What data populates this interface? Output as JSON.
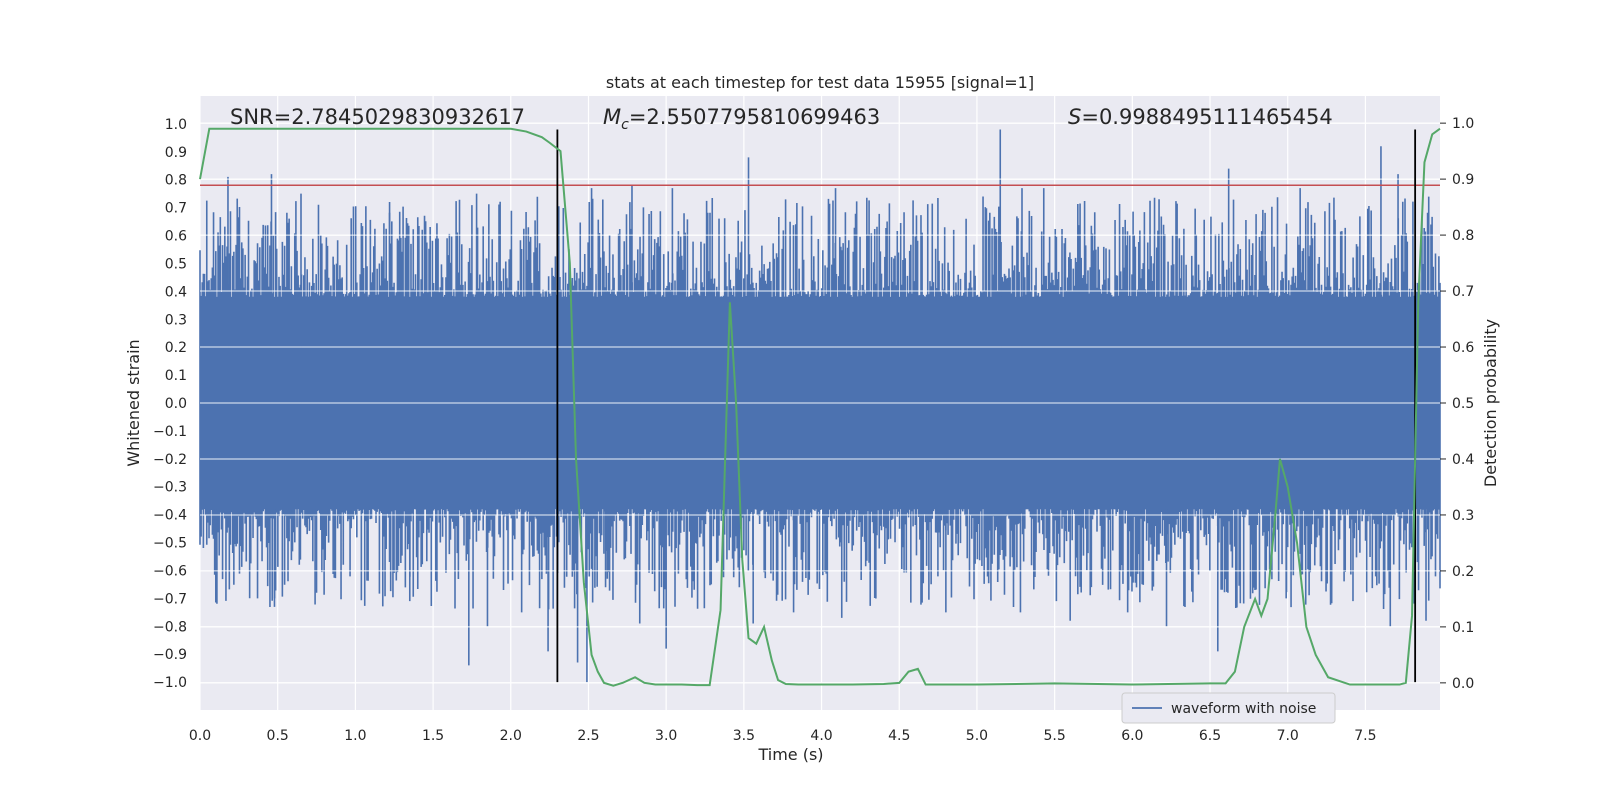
{
  "chart_data": {
    "type": "line",
    "title": "stats at each timestep for test data 15955 [signal=1]",
    "xlabel": "Time (s)",
    "ylabel": "Whitened strain",
    "y2label": "Detection probability",
    "xlim": [
      0.0,
      7.98
    ],
    "ylim": [
      -1.1,
      1.1
    ],
    "y2lim": [
      -0.0485,
      1.0485
    ],
    "xticks": [
      0.0,
      0.5,
      1.0,
      1.5,
      2.0,
      2.5,
      3.0,
      3.5,
      4.0,
      4.5,
      5.0,
      5.5,
      6.0,
      6.5,
      7.0,
      7.5
    ],
    "xtick_labels": [
      "0.0",
      "0.5",
      "1.0",
      "1.5",
      "2.0",
      "2.5",
      "3.0",
      "3.5",
      "4.0",
      "4.5",
      "5.0",
      "5.5",
      "6.0",
      "6.5",
      "7.0",
      "7.5"
    ],
    "yticks": [
      1.0,
      0.9,
      0.8,
      0.7,
      0.6,
      0.5,
      0.4,
      0.3,
      0.2,
      0.1,
      0.0,
      -0.1,
      -0.2,
      -0.3,
      -0.4,
      -0.5,
      -0.6,
      -0.7,
      -0.8,
      -0.9,
      -1.0
    ],
    "ytick_labels": [
      "1.0",
      "0.9",
      "0.8",
      "0.7",
      "0.6",
      "0.5",
      "0.4",
      "0.3",
      "0.2",
      "0.1",
      "0.0",
      "−0.1",
      "−0.2",
      "−0.3",
      "−0.4",
      "−0.5",
      "−0.6",
      "−0.7",
      "−0.8",
      "−0.9",
      "−1.0"
    ],
    "y2ticks": [
      1.0,
      0.9,
      0.8,
      0.7,
      0.6,
      0.5,
      0.4,
      0.3,
      0.2,
      0.1,
      0.0
    ],
    "y2tick_labels": [
      "1.0",
      "0.9",
      "0.8",
      "0.7",
      "0.6",
      "0.5",
      "0.4",
      "0.3",
      "0.2",
      "0.1",
      "0.0"
    ],
    "annotations": {
      "snr": "SNR=2.7845029830932617",
      "mc_symbol": "M",
      "mc_sub": "c",
      "mc_value": "=2.5507795810699463",
      "s_symbol": "S",
      "s_value": "=0.9988495111465454"
    },
    "threshold": {
      "value": 0.78,
      "color": "#c44e52"
    },
    "vlines": [
      2.3,
      7.82
    ],
    "waveform": {
      "name": "waveform with noise",
      "color": "#4c72b0",
      "core_envelope": 0.38,
      "samples": 1100,
      "seed": 15955,
      "spikes": [
        {
          "t": 0.03,
          "v": 0.38
        },
        {
          "t": 0.18,
          "v": 0.81
        },
        {
          "t": 0.46,
          "v": 0.82
        },
        {
          "t": 0.65,
          "v": 0.75
        },
        {
          "t": 1.22,
          "v": 0.72
        },
        {
          "t": 1.78,
          "v": 0.75
        },
        {
          "t": 2.52,
          "v": 0.77
        },
        {
          "t": 2.78,
          "v": 0.78
        },
        {
          "t": 3.04,
          "v": 0.77
        },
        {
          "t": 3.53,
          "v": 0.88
        },
        {
          "t": 4.09,
          "v": 0.77
        },
        {
          "t": 5.15,
          "v": 0.98
        },
        {
          "t": 5.29,
          "v": 0.77
        },
        {
          "t": 5.43,
          "v": 0.77
        },
        {
          "t": 6.62,
          "v": 0.84
        },
        {
          "t": 7.08,
          "v": 0.77
        },
        {
          "t": 7.6,
          "v": 0.92
        },
        {
          "t": 7.71,
          "v": 0.82
        },
        {
          "t": 0.1,
          "v": -0.61
        },
        {
          "t": 0.48,
          "v": -0.7
        },
        {
          "t": 0.75,
          "v": -0.68
        },
        {
          "t": 1.35,
          "v": -0.71
        },
        {
          "t": 1.73,
          "v": -0.94
        },
        {
          "t": 1.85,
          "v": -0.8
        },
        {
          "t": 2.07,
          "v": -0.75
        },
        {
          "t": 2.24,
          "v": -0.89
        },
        {
          "t": 2.43,
          "v": -0.93
        },
        {
          "t": 2.61,
          "v": -0.66
        },
        {
          "t": 2.83,
          "v": -0.79
        },
        {
          "t": 3.0,
          "v": -0.88
        },
        {
          "t": 3.29,
          "v": -0.65
        },
        {
          "t": 3.56,
          "v": -0.79
        },
        {
          "t": 3.82,
          "v": -0.75
        },
        {
          "t": 4.13,
          "v": -0.77
        },
        {
          "t": 4.8,
          "v": -0.75
        },
        {
          "t": 5.28,
          "v": -0.75
        },
        {
          "t": 5.6,
          "v": -0.78
        },
        {
          "t": 5.97,
          "v": -0.75
        },
        {
          "t": 6.22,
          "v": -0.8
        },
        {
          "t": 6.55,
          "v": -0.89
        },
        {
          "t": 6.99,
          "v": -0.7
        },
        {
          "t": 7.42,
          "v": -0.71
        },
        {
          "t": 7.66,
          "v": -0.8
        },
        {
          "t": 7.89,
          "v": -0.78
        },
        {
          "t": 2.49,
          "v": -1.0
        }
      ]
    },
    "probability": {
      "color": "#55a868",
      "x": [
        0.0,
        0.06,
        0.2,
        0.5,
        1.0,
        1.5,
        2.0,
        2.1,
        2.2,
        2.25,
        2.32,
        2.38,
        2.42,
        2.47,
        2.52,
        2.56,
        2.6,
        2.66,
        2.72,
        2.8,
        2.86,
        2.93,
        3.0,
        3.1,
        3.2,
        3.28,
        3.35,
        3.41,
        3.45,
        3.49,
        3.53,
        3.58,
        3.63,
        3.68,
        3.72,
        3.77,
        3.85,
        4.0,
        4.2,
        4.4,
        4.5,
        4.56,
        4.62,
        4.67,
        4.75,
        5.0,
        5.5,
        6.0,
        6.5,
        6.6,
        6.66,
        6.72,
        6.79,
        6.83,
        6.87,
        6.92,
        6.95,
        7.0,
        7.06,
        7.12,
        7.18,
        7.26,
        7.4,
        7.55,
        7.65,
        7.72,
        7.76,
        7.8,
        7.84,
        7.88,
        7.93,
        7.98
      ],
      "y": [
        0.9,
        0.99,
        0.99,
        0.99,
        0.99,
        0.99,
        0.99,
        0.985,
        0.975,
        0.965,
        0.95,
        0.75,
        0.4,
        0.18,
        0.05,
        0.02,
        0.0,
        -0.005,
        0.0,
        0.01,
        0.0,
        -0.003,
        -0.003,
        -0.003,
        -0.004,
        -0.004,
        0.13,
        0.68,
        0.5,
        0.22,
        0.08,
        0.07,
        0.1,
        0.04,
        0.005,
        -0.002,
        -0.003,
        -0.003,
        -0.003,
        -0.002,
        0.0,
        0.02,
        0.025,
        -0.003,
        -0.003,
        -0.003,
        -0.001,
        -0.003,
        -0.001,
        -0.001,
        0.02,
        0.1,
        0.15,
        0.12,
        0.15,
        0.3,
        0.4,
        0.35,
        0.25,
        0.1,
        0.05,
        0.01,
        -0.003,
        -0.003,
        -0.003,
        -0.003,
        0.0,
        0.12,
        0.68,
        0.93,
        0.98,
        0.99
      ]
    }
  },
  "legend": {
    "label": "waveform with noise"
  }
}
